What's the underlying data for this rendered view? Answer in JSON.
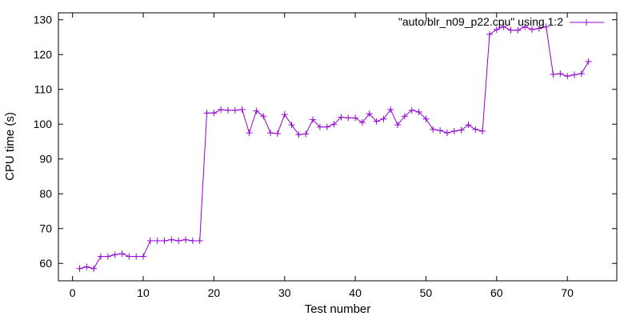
{
  "chart_data": {
    "type": "line",
    "title": "",
    "xlabel": "Test number",
    "ylabel": "CPU time (s)",
    "xlim": [
      -2,
      77
    ],
    "ylim": [
      55,
      132
    ],
    "xticks": [
      0,
      10,
      20,
      30,
      40,
      50,
      60,
      70
    ],
    "yticks": [
      60,
      70,
      80,
      90,
      100,
      110,
      120,
      130
    ],
    "grid": false,
    "legend_position": "top-right",
    "series": [
      {
        "name": "\"auto/blr_n09_p22.cpu\" using 1:2",
        "color": "#9400d3",
        "marker": "plus",
        "x": [
          1,
          2,
          3,
          4,
          5,
          6,
          7,
          8,
          9,
          10,
          11,
          12,
          13,
          14,
          15,
          16,
          17,
          18,
          19,
          20,
          21,
          22,
          23,
          24,
          25,
          26,
          27,
          28,
          29,
          30,
          31,
          32,
          33,
          34,
          35,
          36,
          37,
          38,
          39,
          40,
          41,
          42,
          43,
          44,
          45,
          46,
          47,
          48,
          49,
          50,
          51,
          52,
          53,
          54,
          55,
          56,
          57,
          58,
          59,
          60,
          61,
          62,
          63,
          64,
          65,
          66,
          67,
          68,
          69,
          70,
          71,
          72,
          73
        ],
        "y": [
          58.5,
          59.0,
          58.5,
          62.0,
          62.0,
          62.5,
          62.8,
          62.0,
          62.0,
          62.0,
          66.5,
          66.5,
          66.5,
          66.8,
          66.5,
          66.8,
          66.5,
          66.5,
          103.2,
          103.2,
          104.2,
          104.0,
          104.0,
          104.2,
          97.5,
          103.8,
          102.3,
          97.5,
          97.3,
          102.8,
          99.8,
          97.0,
          97.2,
          101.3,
          99.2,
          99.2,
          100.0,
          102.0,
          101.8,
          101.8,
          100.5,
          103.0,
          100.8,
          101.5,
          104.2,
          99.8,
          102.3,
          104.0,
          103.5,
          101.5,
          98.5,
          98.2,
          97.5,
          98.0,
          98.3,
          99.8,
          98.5,
          98.0,
          125.8,
          127.2,
          128.0,
          127.0,
          127.0,
          128.0,
          127.2,
          127.5,
          128.0,
          114.3,
          114.5,
          113.8,
          114.2,
          114.5,
          118.0
        ]
      }
    ]
  }
}
